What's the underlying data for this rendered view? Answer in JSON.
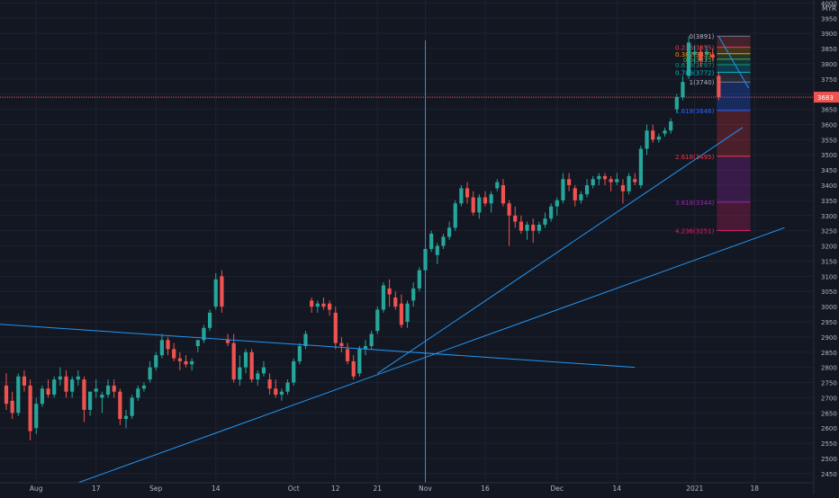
{
  "currency": "MYR",
  "price_label": "3683",
  "colors": {
    "background": "#131722",
    "grid": "#1e2230",
    "axis_text": "#b2b5be",
    "up": "#26a69a",
    "down": "#ef5350",
    "trendline": "#2196f3",
    "price_line": "#ef5350"
  },
  "chart_data": {
    "type": "candlestick",
    "ylim": [
      2420,
      4010
    ],
    "y_ticks": [
      2450,
      2500,
      2550,
      2600,
      2650,
      2700,
      2750,
      2800,
      2850,
      2900,
      2950,
      3000,
      3050,
      3100,
      3150,
      3200,
      3250,
      3300,
      3350,
      3400,
      3450,
      3500,
      3550,
      3600,
      3650,
      3700,
      3750,
      3800,
      3850,
      3900,
      3950,
      4000
    ],
    "x_labels": [
      {
        "label": "Aug",
        "bar": 5
      },
      {
        "label": "17",
        "bar": 15
      },
      {
        "label": "Sep",
        "bar": 25
      },
      {
        "label": "14",
        "bar": 35
      },
      {
        "label": "Oct",
        "bar": 48
      },
      {
        "label": "12",
        "bar": 55
      },
      {
        "label": "21",
        "bar": 62
      },
      {
        "label": "Nov",
        "bar": 70
      },
      {
        "label": "16",
        "bar": 80
      },
      {
        "label": "Dec",
        "bar": 92
      },
      {
        "label": "14",
        "bar": 102
      },
      {
        "label": "2021",
        "bar": 115
      },
      {
        "label": "18",
        "bar": 125
      }
    ],
    "candles": [
      [
        2740,
        2780,
        2660,
        2680
      ],
      [
        2690,
        2720,
        2630,
        2650
      ],
      [
        2650,
        2780,
        2640,
        2770
      ],
      [
        2770,
        2790,
        2720,
        2740
      ],
      [
        2740,
        2760,
        2560,
        2590
      ],
      [
        2600,
        2700,
        2580,
        2680
      ],
      [
        2680,
        2740,
        2670,
        2730
      ],
      [
        2730,
        2760,
        2700,
        2710
      ],
      [
        2710,
        2770,
        2700,
        2760
      ],
      [
        2760,
        2800,
        2740,
        2770
      ],
      [
        2770,
        2790,
        2700,
        2720
      ],
      [
        2720,
        2770,
        2700,
        2760
      ],
      [
        2760,
        2790,
        2740,
        2770
      ],
      [
        2760,
        2770,
        2620,
        2660
      ],
      [
        2660,
        2720,
        2640,
        2720
      ],
      [
        2720,
        2760,
        2700,
        2730
      ],
      [
        2700,
        2720,
        2650,
        2710
      ],
      [
        2710,
        2760,
        2700,
        2740
      ],
      [
        2740,
        2760,
        2700,
        2720
      ],
      [
        2720,
        2730,
        2610,
        2630
      ],
      [
        2630,
        2660,
        2600,
        2640
      ],
      [
        2640,
        2710,
        2630,
        2700
      ],
      [
        2700,
        2740,
        2690,
        2730
      ],
      [
        2730,
        2750,
        2720,
        2740
      ],
      [
        2760,
        2820,
        2750,
        2800
      ],
      [
        2800,
        2850,
        2790,
        2840
      ],
      [
        2840,
        2910,
        2830,
        2890
      ],
      [
        2890,
        2900,
        2840,
        2860
      ],
      [
        2860,
        2880,
        2820,
        2830
      ],
      [
        2830,
        2850,
        2790,
        2820
      ],
      [
        2820,
        2840,
        2800,
        2810
      ],
      [
        2810,
        2830,
        2790,
        2820
      ],
      [
        2870,
        2890,
        2850,
        2890
      ],
      [
        2890,
        2940,
        2880,
        2930
      ],
      [
        2930,
        2990,
        2920,
        2980
      ],
      [
        3000,
        3110,
        2990,
        3090
      ],
      [
        3100,
        3120,
        2980,
        3000
      ],
      [
        2890,
        2910,
        2870,
        2880
      ],
      [
        2880,
        2910,
        2750,
        2760
      ],
      [
        2760,
        2840,
        2740,
        2800
      ],
      [
        2800,
        2860,
        2780,
        2850
      ],
      [
        2850,
        2860,
        2750,
        2760
      ],
      [
        2760,
        2790,
        2740,
        2780
      ],
      [
        2780,
        2820,
        2770,
        2800
      ],
      [
        2760,
        2780,
        2710,
        2730
      ],
      [
        2730,
        2760,
        2700,
        2710
      ],
      [
        2710,
        2730,
        2690,
        2720
      ],
      [
        2720,
        2760,
        2710,
        2750
      ],
      [
        2750,
        2830,
        2740,
        2820
      ],
      [
        2820,
        2880,
        2810,
        2870
      ],
      [
        2870,
        2920,
        2860,
        2910
      ],
      [
        3020,
        3030,
        2980,
        3000
      ],
      [
        3000,
        3020,
        2980,
        3010
      ],
      [
        3010,
        3030,
        2990,
        3000
      ],
      [
        3010,
        3020,
        2970,
        2990
      ],
      [
        2980,
        3000,
        2860,
        2880
      ],
      [
        2880,
        2900,
        2850,
        2870
      ],
      [
        2860,
        2880,
        2810,
        2820
      ],
      [
        2820,
        2840,
        2760,
        2770
      ],
      [
        2780,
        2870,
        2770,
        2860
      ],
      [
        2860,
        2890,
        2840,
        2870
      ],
      [
        2870,
        2920,
        2860,
        2910
      ],
      [
        2920,
        3000,
        2910,
        2990
      ],
      [
        2990,
        3080,
        2980,
        3070
      ],
      [
        3060,
        3090,
        3000,
        3040
      ],
      [
        3030,
        3050,
        2990,
        3000
      ],
      [
        3010,
        3040,
        2930,
        2940
      ],
      [
        2950,
        3020,
        2930,
        3010
      ],
      [
        3020,
        3080,
        3000,
        3060
      ],
      [
        3060,
        3130,
        3050,
        3120
      ],
      [
        3120,
        3200,
        3110,
        3190
      ],
      [
        3190,
        3250,
        3180,
        3240
      ],
      [
        3170,
        3210,
        3140,
        3200
      ],
      [
        3200,
        3240,
        3190,
        3230
      ],
      [
        3230,
        3280,
        3220,
        3260
      ],
      [
        3260,
        3350,
        3250,
        3340
      ],
      [
        3340,
        3400,
        3330,
        3390
      ],
      [
        3390,
        3410,
        3340,
        3360
      ],
      [
        3360,
        3380,
        3300,
        3310
      ],
      [
        3310,
        3370,
        3290,
        3360
      ],
      [
        3360,
        3380,
        3330,
        3340
      ],
      [
        3340,
        3380,
        3310,
        3370
      ],
      [
        3390,
        3420,
        3380,
        3410
      ],
      [
        3400,
        3420,
        3330,
        3340
      ],
      [
        3340,
        3350,
        3200,
        3300
      ],
      [
        3300,
        3330,
        3260,
        3280
      ],
      [
        3280,
        3300,
        3240,
        3250
      ],
      [
        3250,
        3280,
        3220,
        3270
      ],
      [
        3270,
        3290,
        3210,
        3250
      ],
      [
        3250,
        3280,
        3240,
        3270
      ],
      [
        3270,
        3310,
        3260,
        3290
      ],
      [
        3290,
        3340,
        3280,
        3330
      ],
      [
        3330,
        3360,
        3300,
        3350
      ],
      [
        3350,
        3440,
        3340,
        3420
      ],
      [
        3420,
        3440,
        3380,
        3400
      ],
      [
        3390,
        3400,
        3330,
        3350
      ],
      [
        3350,
        3380,
        3340,
        3370
      ],
      [
        3370,
        3420,
        3360,
        3400
      ],
      [
        3400,
        3430,
        3390,
        3420
      ],
      [
        3420,
        3440,
        3400,
        3430
      ],
      [
        3430,
        3440,
        3400,
        3420
      ],
      [
        3420,
        3430,
        3380,
        3410
      ],
      [
        3410,
        3440,
        3400,
        3420
      ],
      [
        3400,
        3420,
        3340,
        3380
      ],
      [
        3380,
        3440,
        3370,
        3430
      ],
      [
        3420,
        3440,
        3400,
        3410
      ],
      [
        3400,
        3530,
        3390,
        3520
      ],
      [
        3520,
        3600,
        3500,
        3580
      ],
      [
        3580,
        3600,
        3540,
        3550
      ],
      [
        3550,
        3570,
        3540,
        3560
      ],
      [
        3570,
        3590,
        3560,
        3580
      ],
      [
        3580,
        3620,
        3570,
        3610
      ],
      [
        3650,
        3700,
        3640,
        3690
      ],
      [
        3690,
        3760,
        3680,
        3740
      ],
      [
        3760,
        3890,
        3750,
        3870
      ],
      [
        3830,
        3860,
        3800,
        3840
      ],
      [
        3840,
        3860,
        3790,
        3810
      ],
      [
        3830,
        3860,
        3810,
        3840
      ],
      [
        3830,
        3850,
        3810,
        3820
      ],
      [
        3760,
        3770,
        3680,
        3690
      ]
    ],
    "fibonacci": [
      {
        "label": "0(3891)",
        "value": 3891
      },
      {
        "label": "0.236(3855)",
        "value": 3855
      },
      {
        "label": "0.382(3833)",
        "value": 3833
      },
      {
        "label": "0.5(3815)",
        "value": 3815
      },
      {
        "label": "0.618(3797)",
        "value": 3797
      },
      {
        "label": "0.786(3772)",
        "value": 3772
      },
      {
        "label": "1(3740)",
        "value": 3740
      },
      {
        "label": "1.618(3646)",
        "value": 3646
      },
      {
        "label": "2.618(3495)",
        "value": 3495
      },
      {
        "label": "3.618(3344)",
        "value": 3344
      },
      {
        "label": "4.236(3251)",
        "value": 3251
      }
    ],
    "trendlines": [
      {
        "b1": -7,
        "v1": 2950,
        "b2": 105,
        "v2": 2800
      },
      {
        "b1": 12,
        "v1": 2420,
        "b2": 130,
        "v2": 3260
      },
      {
        "b1": 62,
        "v1": 2780,
        "b2": 123,
        "v2": 3590
      },
      {
        "b1": 119,
        "v1": 3890,
        "b2": 124,
        "v2": 3720
      }
    ],
    "crosshair": {
      "bar": 70,
      "value": 2840
    }
  }
}
